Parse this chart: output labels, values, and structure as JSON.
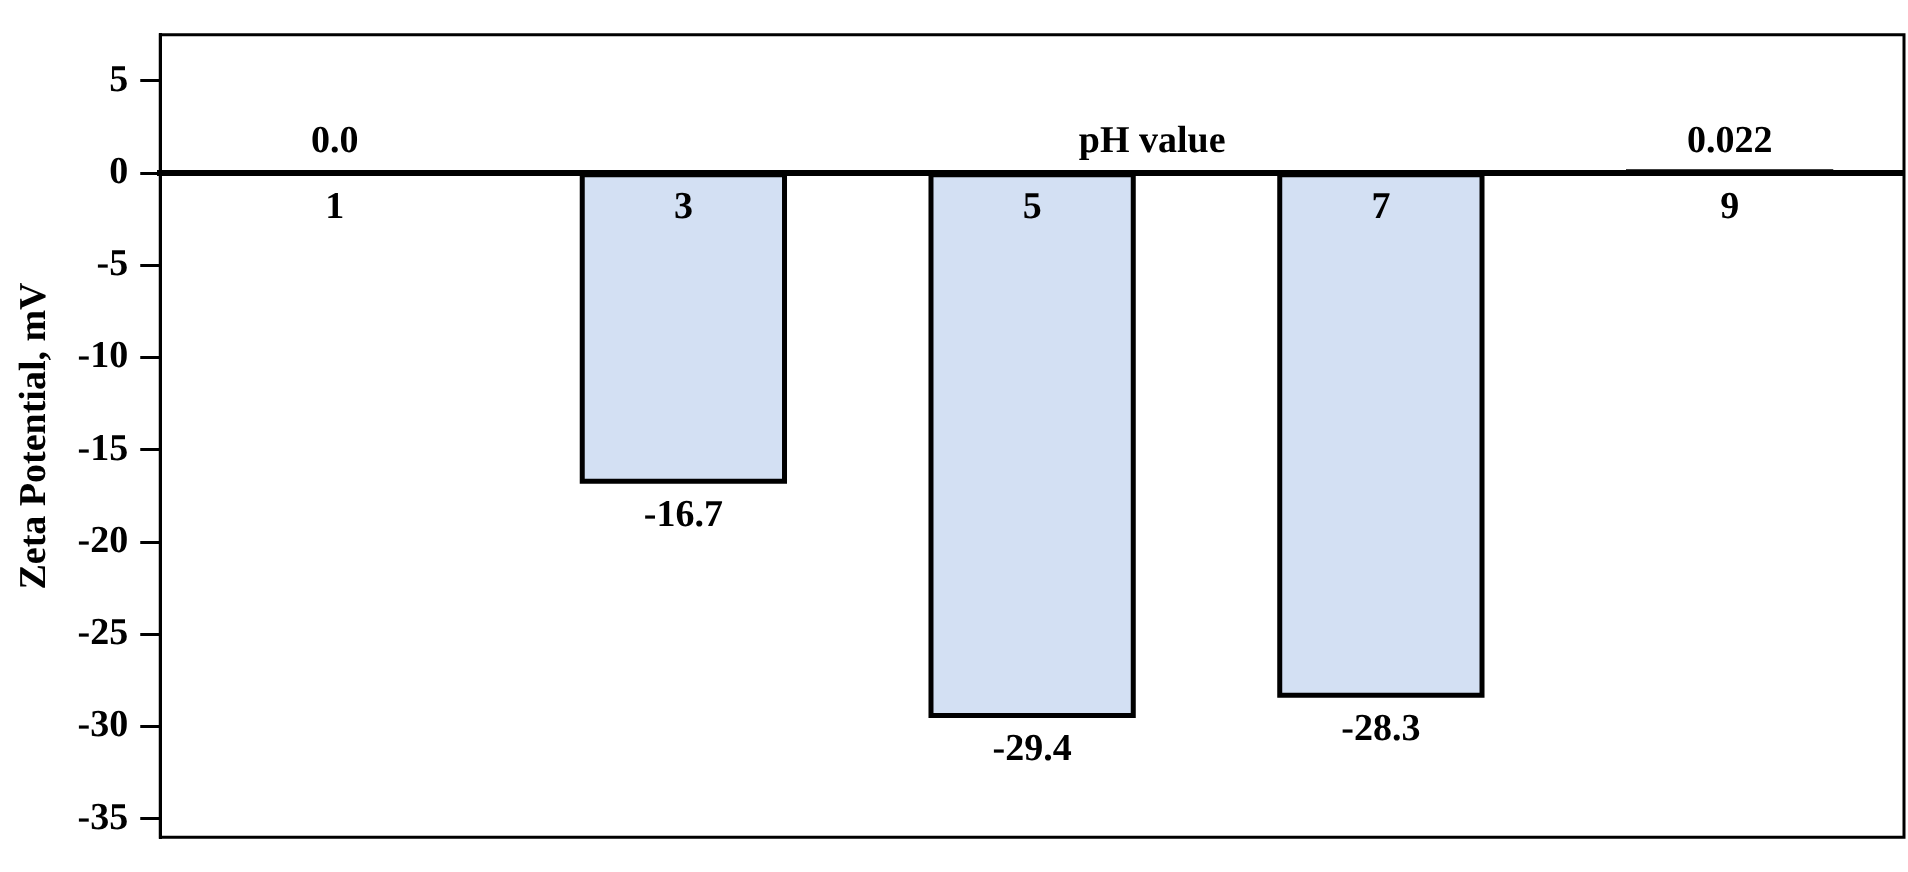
{
  "chart_data": {
    "type": "bar",
    "xlabel": "pH value",
    "ylabel": "Zeta Potential, mV",
    "categories": [
      "1",
      "3",
      "5",
      "7",
      "9"
    ],
    "values": [
      0,
      -16.7,
      -29.4,
      -28.3,
      0.022
    ],
    "value_labels": [
      "0.0",
      "-16.7",
      "-29.4",
      "-28.3",
      "0.022"
    ],
    "colors": [
      "#000000",
      "#d3e0f3",
      "#d3e0f3",
      "#d3e0f3",
      "#000000"
    ],
    "ylim": [
      -36,
      7.5
    ],
    "yticks": [
      5,
      0,
      -5,
      -10,
      -15,
      -20,
      -25,
      -30,
      -35
    ],
    "grid": false,
    "legend": false
  }
}
